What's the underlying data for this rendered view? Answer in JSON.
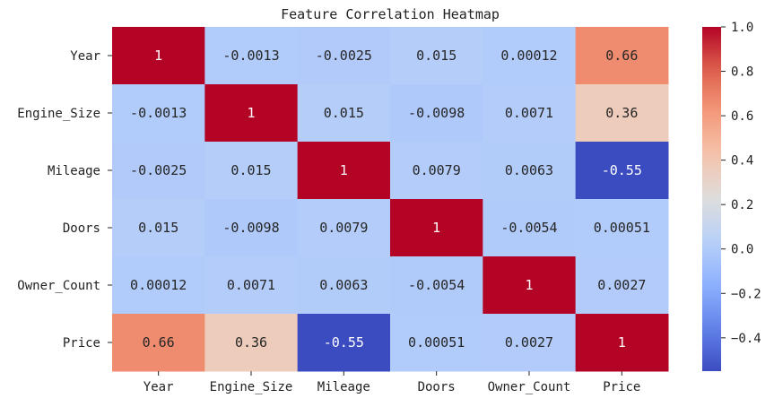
{
  "chart_data": {
    "type": "heatmap",
    "title": "Feature Correlation Heatmap",
    "rows": [
      "Year",
      "Engine_Size",
      "Mileage",
      "Doors",
      "Owner_Count",
      "Price"
    ],
    "columns": [
      "Year",
      "Engine_Size",
      "Mileage",
      "Doors",
      "Owner_Count",
      "Price"
    ],
    "values": [
      [
        1,
        -0.0013,
        -0.0025,
        0.015,
        0.00012,
        0.66
      ],
      [
        -0.0013,
        1,
        0.015,
        -0.0098,
        0.0071,
        0.36
      ],
      [
        -0.0025,
        0.015,
        1,
        0.0079,
        0.0063,
        -0.55
      ],
      [
        0.015,
        -0.0098,
        0.0079,
        1,
        -0.0054,
        0.00051
      ],
      [
        0.00012,
        0.0071,
        0.0063,
        -0.0054,
        1,
        0.0027
      ],
      [
        0.66,
        0.36,
        -0.55,
        0.00051,
        0.0027,
        1
      ]
    ],
    "annotations": [
      [
        "1",
        "-0.0013",
        "-0.0025",
        "0.015",
        "0.00012",
        "0.66"
      ],
      [
        "-0.0013",
        "1",
        "0.015",
        "-0.0098",
        "0.0071",
        "0.36"
      ],
      [
        "-0.0025",
        "0.015",
        "1",
        "0.0079",
        "0.0063",
        "-0.55"
      ],
      [
        "0.015",
        "-0.0098",
        "0.0079",
        "1",
        "-0.0054",
        "0.00051"
      ],
      [
        "0.00012",
        "0.0071",
        "0.0063",
        "-0.0054",
        "1",
        "0.0027"
      ],
      [
        "0.66",
        "0.36",
        "-0.55",
        "0.00051",
        "0.0027",
        "1"
      ]
    ],
    "colormap": "coolwarm",
    "colorbar": {
      "range": [
        -0.55,
        1.0
      ],
      "ticks": [
        1.0,
        0.8,
        0.6,
        0.4,
        0.2,
        0.0,
        -0.2,
        -0.4
      ],
      "tick_labels": [
        "1.0",
        "0.8",
        "0.6",
        "0.4",
        "0.2",
        "0.0",
        "−0.2",
        "−0.4"
      ]
    },
    "colors": {
      "low": "#3b4cc0",
      "mid": "#dddddd",
      "high": "#b40426",
      "text_dark": "#262626",
      "text_light": "#ffffff"
    }
  }
}
